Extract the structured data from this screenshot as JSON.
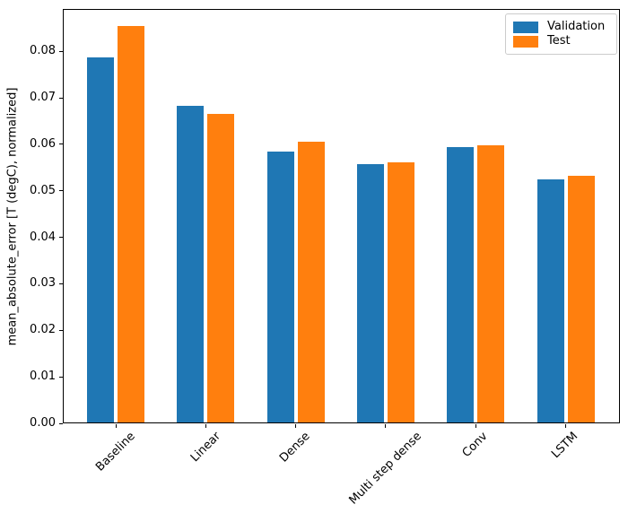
{
  "chart_data": {
    "type": "bar",
    "title": "",
    "xlabel": "",
    "ylabel": "mean_absolute_error [T (degC), normalized]",
    "categories": [
      "Baseline",
      "Linear",
      "Dense",
      "Multi step dense",
      "Conv",
      "LSTM"
    ],
    "series": [
      {
        "name": "Validation",
        "color": "#1f77b4",
        "values": [
          0.0785,
          0.0681,
          0.0582,
          0.0556,
          0.0593,
          0.0522
        ]
      },
      {
        "name": "Test",
        "color": "#ff7f0e",
        "values": [
          0.0852,
          0.0663,
          0.0603,
          0.056,
          0.0595,
          0.0531
        ]
      }
    ],
    "y_ticks": [
      "0.00",
      "0.01",
      "0.02",
      "0.03",
      "0.04",
      "0.05",
      "0.06",
      "0.07",
      "0.08"
    ],
    "y_tick_values": [
      0.0,
      0.01,
      0.02,
      0.03,
      0.04,
      0.05,
      0.06,
      0.07,
      0.08
    ],
    "ylim": [
      0,
      0.0891
    ],
    "grid": false,
    "legend_position": "upper right",
    "x_tick_rotation": 45,
    "bar_group_offsets": [
      -0.17,
      0.17
    ],
    "bar_width": 0.3
  }
}
